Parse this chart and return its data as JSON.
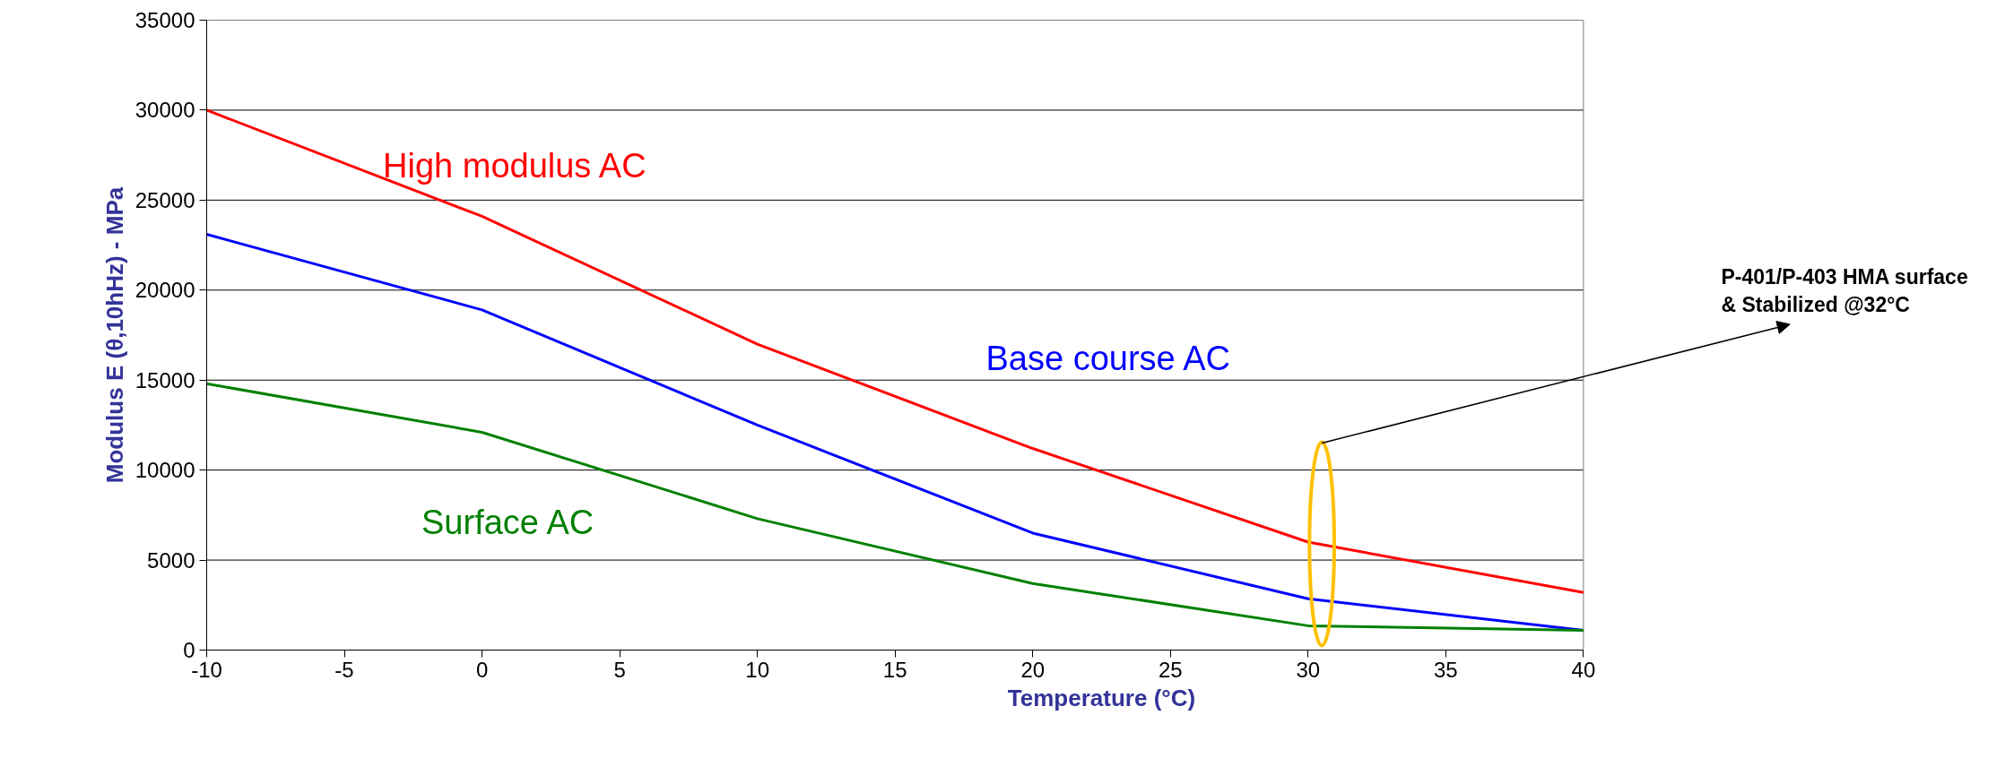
{
  "chart_data": {
    "type": "line",
    "xlabel": "Temperature (°C)",
    "ylabel": "Modulus E (θ,10hHz) - MPa",
    "x": [
      -10,
      0,
      10,
      20,
      30,
      40
    ],
    "series": [
      {
        "name": "High modulus AC",
        "color": "#ff0000",
        "values": [
          30000,
          24100,
          17000,
          11200,
          6000,
          3200
        ]
      },
      {
        "name": "Base course AC",
        "color": "#0000ff",
        "values": [
          23100,
          18900,
          12500,
          6500,
          2850,
          1100
        ]
      },
      {
        "name": "Surface AC",
        "color": "#008000",
        "values": [
          14800,
          12100,
          7300,
          3700,
          1350,
          1100
        ]
      }
    ],
    "xlim": [
      -10,
      40
    ],
    "xticks": [
      -10,
      -5,
      0,
      5,
      10,
      15,
      20,
      25,
      30,
      35,
      40
    ],
    "ylim": [
      0,
      35000
    ],
    "yticks": [
      0,
      5000,
      10000,
      15000,
      20000,
      25000,
      30000,
      35000
    ],
    "grid": "y",
    "marker": "none",
    "line_style": "solid",
    "annotations": [
      "P-401/P-403 HMA surface\n & Stabilized @32°C"
    ]
  }
}
